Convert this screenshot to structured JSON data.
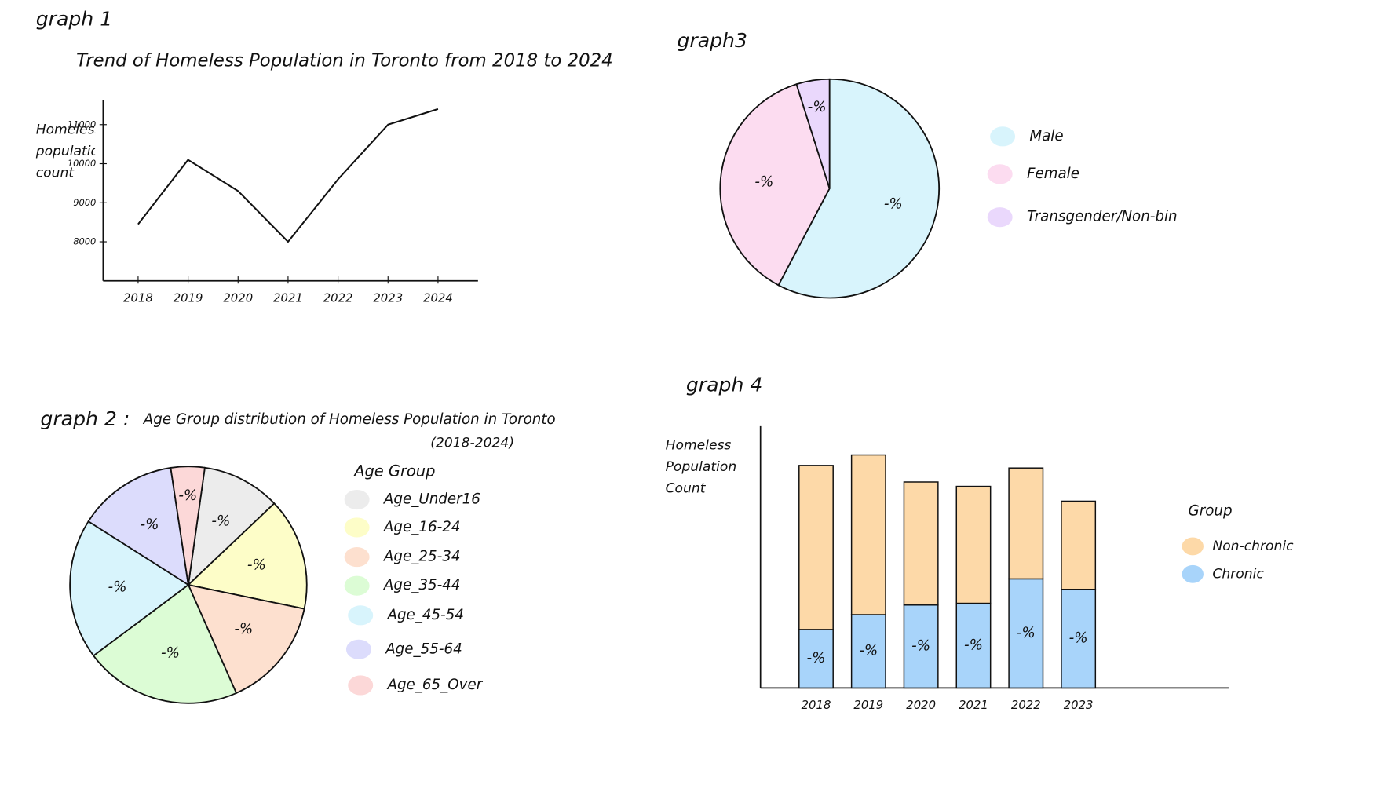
{
  "chart_data": [
    {
      "type": "line",
      "label": "graph 1",
      "title": "Trend of Homeless Population in Toronto from 2018 to 2024",
      "y_label": "Homeless population count",
      "x": [
        2018,
        2019,
        2020,
        2021,
        2022,
        2023,
        2024
      ],
      "values": [
        8450,
        10100,
        9300,
        8000,
        9600,
        11000,
        11400
      ],
      "color": "#111111",
      "xlim": [
        2017.3,
        2024.8
      ],
      "xticks": [
        2018,
        2019,
        2020,
        2021,
        2022,
        2023,
        2024
      ],
      "ylim": [
        7000,
        11500
      ],
      "yticks": [
        8000,
        9000,
        10000,
        11000
      ],
      "grid": false
    },
    {
      "type": "pie",
      "label": "graph 2 :",
      "title": "Age Group distribution of Homeless Population in Toronto",
      "subtitle": "(2018-2024)",
      "legend_title": "Age Group",
      "categories": [
        "Age_Under16",
        "Age_16-24",
        "Age_25-34",
        "Age_35-44",
        "Age_45-54",
        "Age_55-64",
        "Age_65_Over"
      ],
      "values": [
        10.7,
        15.3,
        15.1,
        21.4,
        19.2,
        13.6,
        4.6
      ],
      "value_labels": [
        "-%",
        "-%",
        "-%",
        "-%",
        "-%",
        "-%",
        "-%"
      ],
      "colors": [
        "#ececec",
        "#fdfdc8",
        "#fde0cf",
        "#dcfcd5",
        "#d8f4fc",
        "#dcdcfc",
        "#fcd8d8"
      ]
    },
    {
      "type": "pie",
      "label": "graph3",
      "categories": [
        "Male",
        "Female",
        "Transgender/Non-bin"
      ],
      "values": [
        57.8,
        37.4,
        4.9
      ],
      "value_labels": [
        "-%",
        "-%",
        "-%"
      ],
      "colors": [
        "#d8f4fc",
        "#fcdcf0",
        "#ead8fc"
      ]
    },
    {
      "type": "bar",
      "label": "graph 4",
      "y_label": "Homeless Population Count",
      "legend_title": "Group",
      "categories": [
        "2018",
        "2019",
        "2020",
        "2021",
        "2022",
        "2023"
      ],
      "series": [
        {
          "name": "Non-chronic",
          "color": "#fdd9a8",
          "values": [
            188,
            183,
            141,
            134,
            127,
            101
          ]
        },
        {
          "name": "Chronic",
          "color": "#a8d4fa",
          "values": [
            67,
            84,
            95,
            97,
            125,
            113
          ],
          "value_labels": [
            "-%",
            "-%",
            "-%",
            "-%",
            "-%",
            "-%"
          ]
        }
      ],
      "ylim": [
        0,
        300
      ]
    }
  ]
}
